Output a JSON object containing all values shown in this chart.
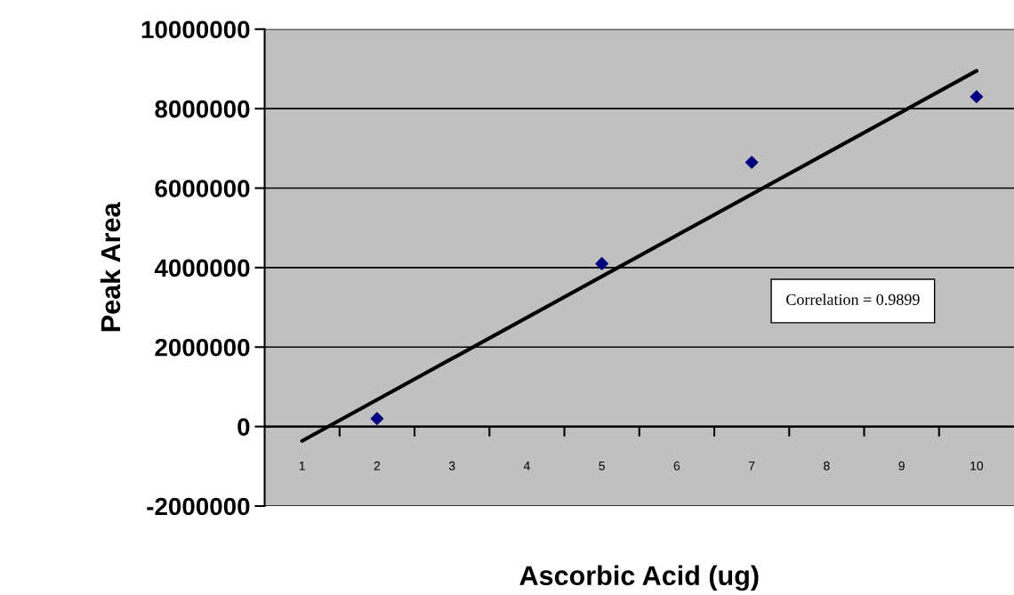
{
  "chart_data": {
    "type": "scatter",
    "xlabel": "Ascorbic Acid (ug)",
    "ylabel": "Peak Area",
    "xlim": [
      0.5,
      10.5
    ],
    "xticks": [
      1,
      2,
      3,
      4,
      5,
      6,
      7,
      8,
      9,
      10
    ],
    "ylim": [
      -2000000,
      10000000
    ],
    "yticks": [
      -2000000,
      0,
      2000000,
      4000000,
      6000000,
      8000000,
      10000000
    ],
    "grid": "y",
    "legend": false,
    "series": [
      {
        "marker": "diamond",
        "color": "#000080",
        "x": [
          2,
          5,
          7,
          10
        ],
        "values": [
          200000,
          4100000,
          6650000,
          8300000
        ]
      },
      {
        "type": "line",
        "marker": "none",
        "line_style": "solid",
        "color": "#000000",
        "x": [
          1,
          10
        ],
        "values": [
          -360000,
          8950000
        ]
      }
    ],
    "annotations": [
      "Correlation = 0.9899"
    ]
  }
}
